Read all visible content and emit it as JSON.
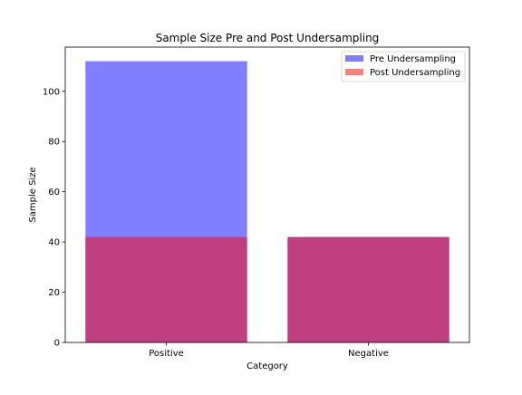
{
  "chart_data": {
    "type": "bar",
    "title": "Sample Size Pre and Post Undersampling",
    "xlabel": "Category",
    "ylabel": "Sample Size",
    "categories": [
      "Positive",
      "Negative"
    ],
    "series": [
      {
        "name": "Pre Undersampling",
        "values": [
          112,
          42
        ],
        "color": "#0000ff",
        "alpha": 0.5
      },
      {
        "name": "Post Undersampling",
        "values": [
          42,
          42
        ],
        "color": "#ff0000",
        "alpha": 0.5
      }
    ],
    "ylim": [
      0,
      117.6
    ],
    "yticks": [
      0,
      20,
      40,
      60,
      80,
      100
    ],
    "grid": false,
    "legend_position": "top-right",
    "overlay": true
  }
}
